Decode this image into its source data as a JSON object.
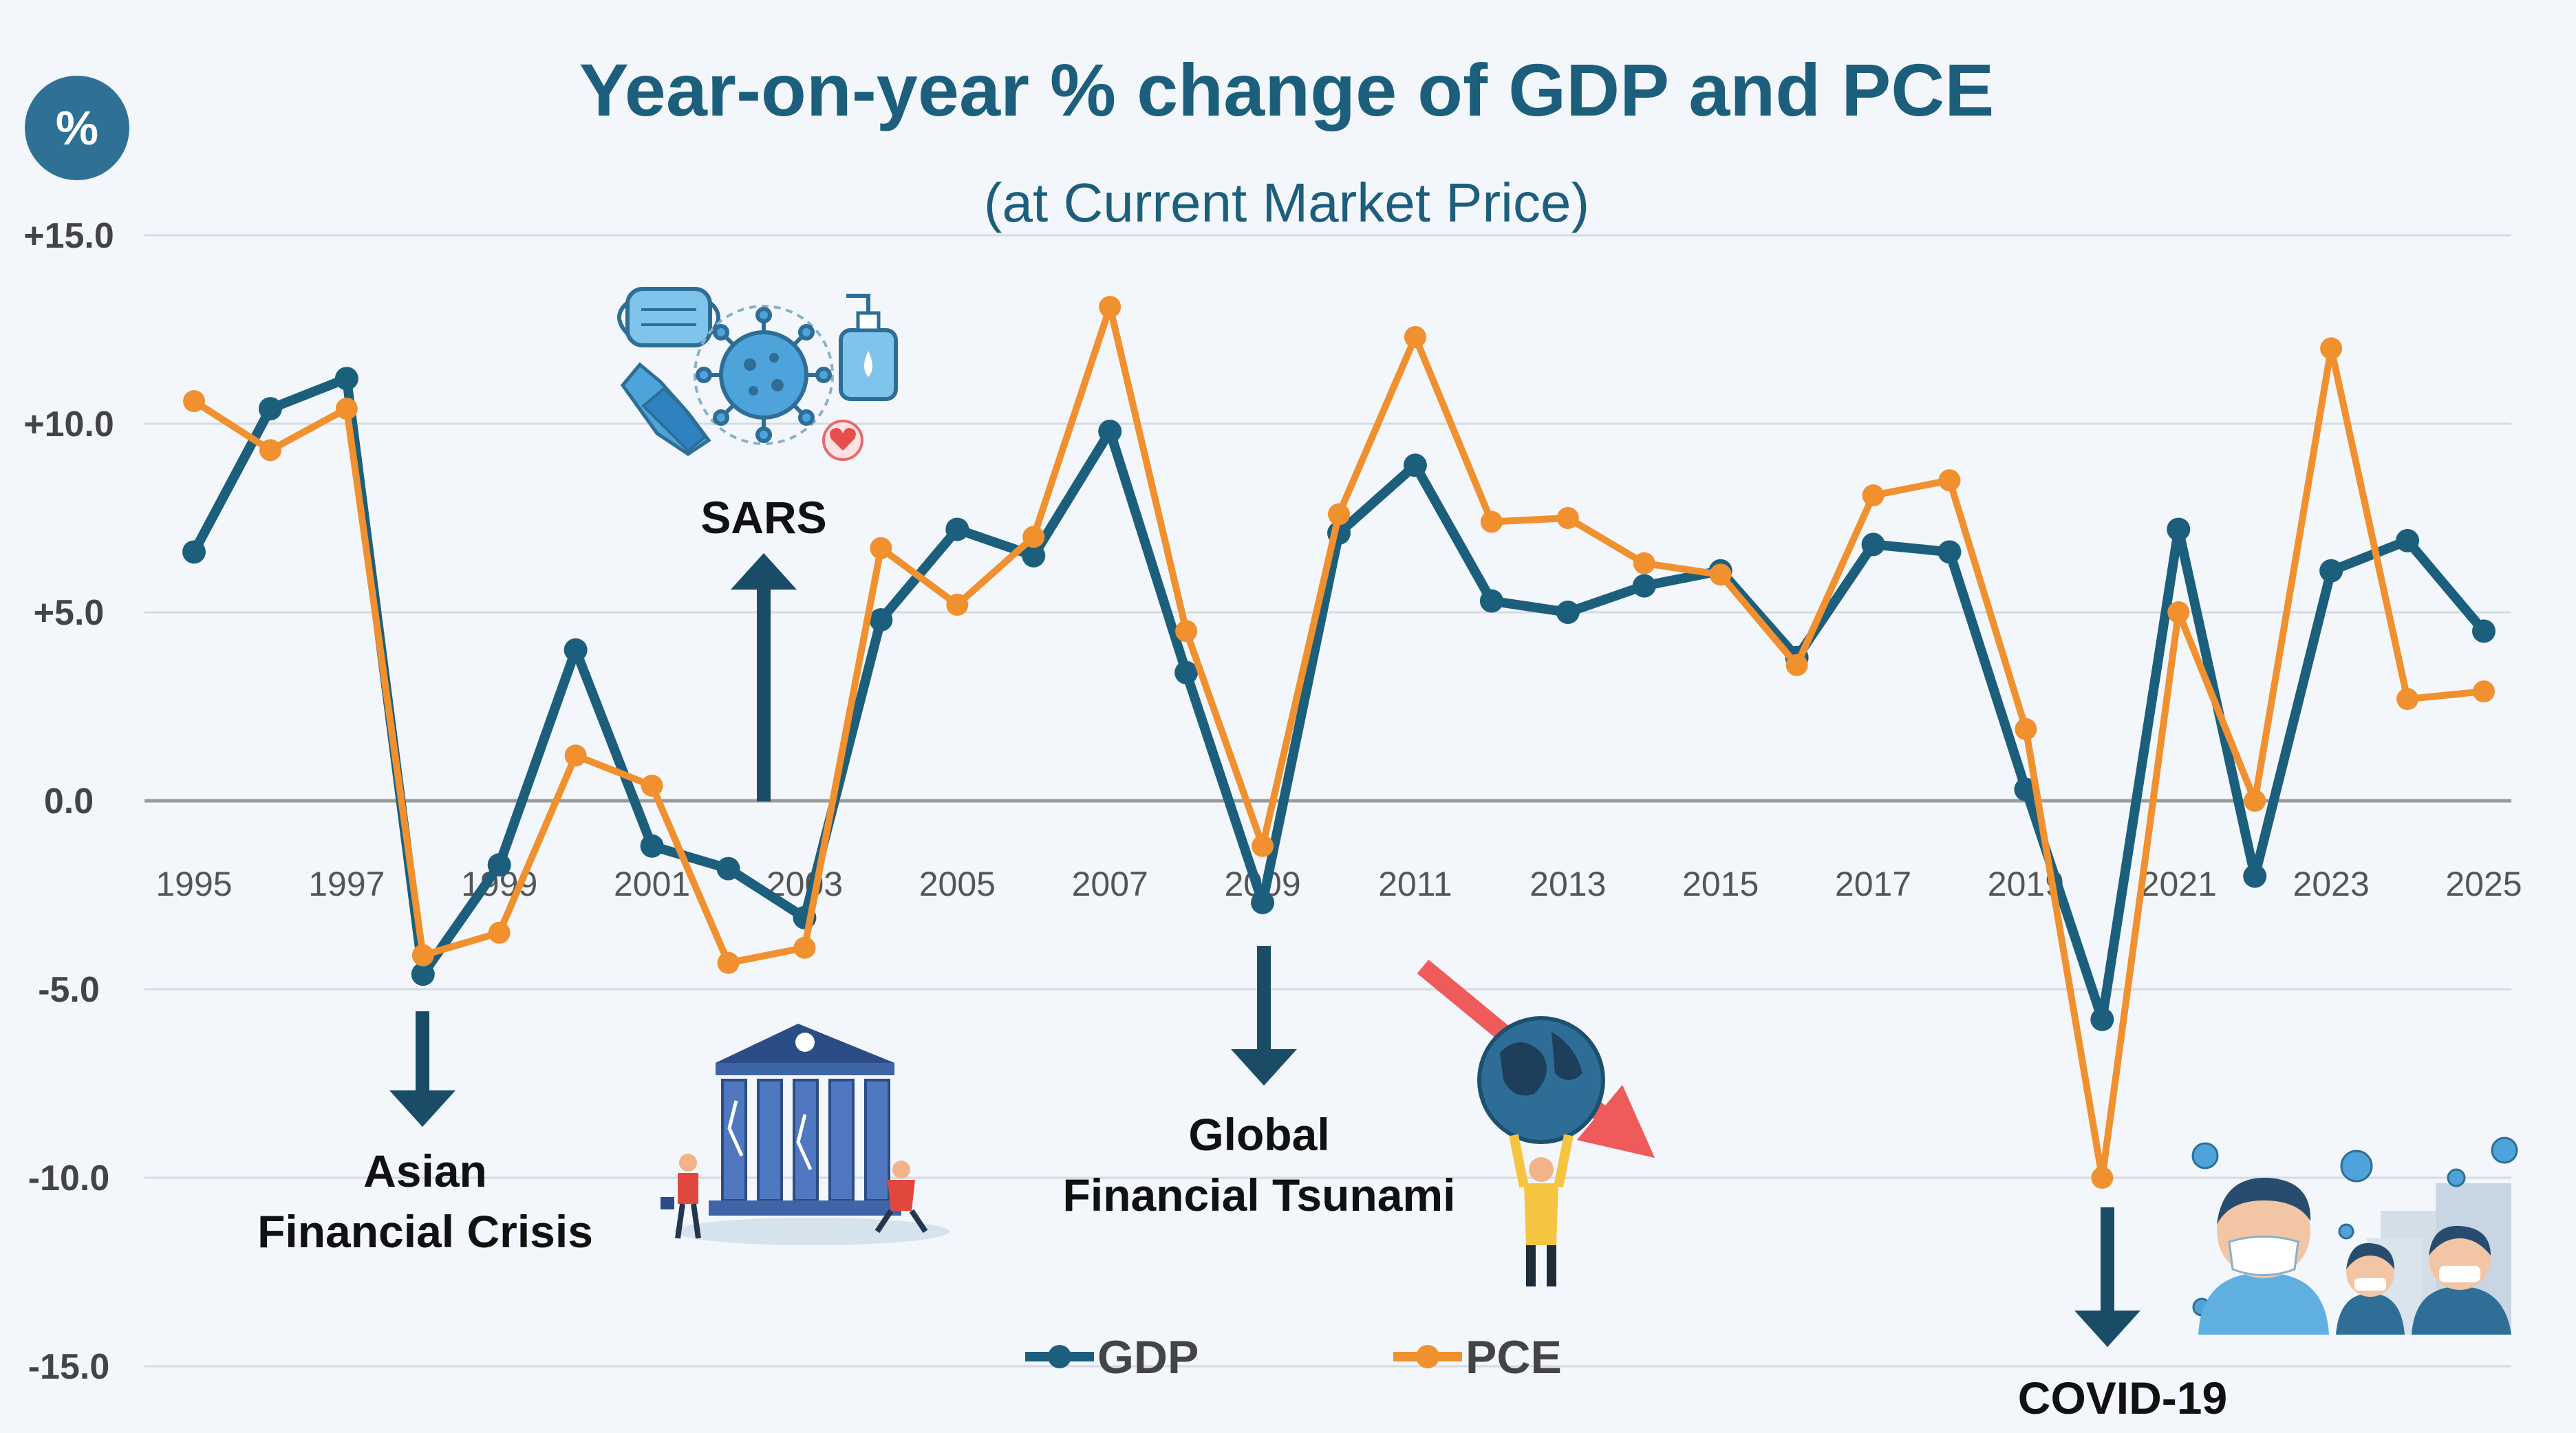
{
  "badge": "%",
  "chart_data": {
    "type": "line",
    "title": "Year-on-year % change of GDP and PCE",
    "subtitle": "(at Current Market Price)",
    "xlabel": "",
    "ylabel": "",
    "x": [
      1995,
      1996,
      1997,
      1998,
      1999,
      2000,
      2001,
      2002,
      2003,
      2004,
      2005,
      2006,
      2007,
      2008,
      2009,
      2010,
      2011,
      2012,
      2013,
      2014,
      2015,
      2016,
      2017,
      2018,
      2019,
      2020,
      2021,
      2022,
      2023,
      2024,
      2025
    ],
    "x_tick_labels": [
      "1995",
      "1997",
      "1999",
      "2001",
      "2003",
      "2005",
      "2007",
      "2009",
      "2011",
      "2013",
      "2015",
      "2017",
      "2019",
      "2021",
      "2023",
      "2025"
    ],
    "x_tick_years": [
      1995,
      1997,
      1999,
      2001,
      2003,
      2005,
      2007,
      2009,
      2011,
      2013,
      2015,
      2017,
      2019,
      2021,
      2023,
      2025
    ],
    "y_ticks": [
      15,
      10,
      5,
      0,
      -5,
      -10,
      -15
    ],
    "y_tick_labels": [
      "+15.0",
      "+10.0",
      "+5.0",
      "0.0",
      "-5.0",
      "-10.0",
      "-15.0"
    ],
    "ylim": [
      -15,
      15
    ],
    "grid": true,
    "legend_position": "bottom-center",
    "series": [
      {
        "name": "GDP",
        "color": "#1c5f7c",
        "values": [
          6.6,
          10.4,
          11.2,
          -4.6,
          -1.7,
          4.0,
          -1.2,
          -1.8,
          -3.1,
          4.8,
          7.2,
          6.5,
          9.8,
          3.4,
          -2.7,
          7.1,
          8.9,
          5.3,
          5.0,
          5.7,
          6.1,
          3.8,
          6.8,
          6.6,
          0.3,
          -5.8,
          7.2,
          -2.0,
          6.1,
          6.9,
          4.5
        ]
      },
      {
        "name": "PCE",
        "color": "#f0902f",
        "values": [
          10.6,
          9.3,
          10.4,
          -4.1,
          -3.5,
          1.2,
          0.4,
          -4.3,
          -3.9,
          6.7,
          5.2,
          7.0,
          13.1,
          4.5,
          -1.2,
          7.6,
          12.3,
          7.4,
          7.5,
          6.3,
          6.0,
          3.6,
          8.1,
          8.5,
          1.9,
          -10.0,
          5.0,
          0.0,
          12.0,
          2.7,
          2.9
        ]
      }
    ],
    "annotations": [
      {
        "label": "SARS",
        "year": 2003,
        "direction": "up"
      },
      {
        "label": "Asian\nFinancial Crisis",
        "year": 1998,
        "direction": "down"
      },
      {
        "label": "Global\nFinancial Tsunami",
        "year": 2009,
        "direction": "down"
      },
      {
        "label": "COVID-19",
        "year": 2020,
        "direction": "down"
      }
    ]
  }
}
